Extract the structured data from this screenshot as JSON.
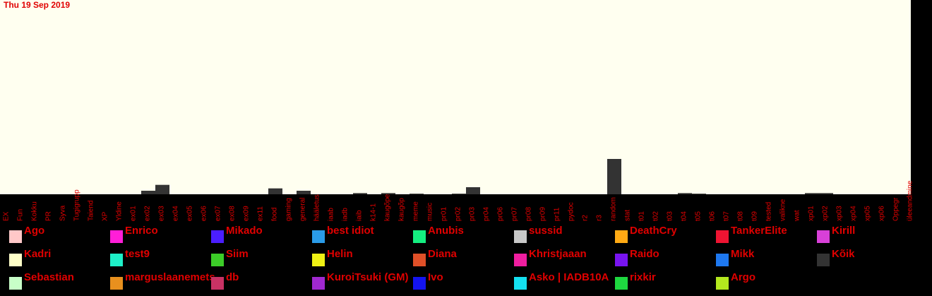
{
  "header": {
    "date": "Thu 19 Sep 2019"
  },
  "colors": {
    "text": "#e00000",
    "background": "#000000",
    "bar": "#333333",
    "plot": "#fffff0"
  },
  "chart_data": {
    "type": "bar",
    "stacked": true,
    "title": "",
    "xlabel": "",
    "ylabel": "",
    "ylim": [
      0,
      50
    ],
    "grid": false,
    "categories": [
      "EX",
      "Fun",
      "Kokku",
      "PR",
      "Syva",
      "Tugigrupp",
      "Taiend",
      "XP",
      "Yldine",
      "ex01",
      "ex02",
      "ex03",
      "ex04",
      "ex05",
      "ex06",
      "ex07",
      "ex08",
      "ex09",
      "ex11",
      "food",
      "gaming",
      "general",
      "hääletus",
      "iaab",
      "iadb",
      "iaib",
      "k14-1",
      "kaugõpe",
      "kaugõp",
      "meme",
      "music",
      "pr01",
      "pr02",
      "pr03",
      "pr04",
      "pr06",
      "pr07",
      "pr08",
      "pr09",
      "pr11",
      "pydoc",
      "r2",
      "r3",
      "random",
      "stat",
      "t01",
      "t02",
      "t03",
      "t04",
      "t05",
      "t06",
      "t07",
      "t08",
      "t09",
      "tested",
      "valikne",
      "wat",
      "xp01",
      "xp02",
      "xp03",
      "xp04",
      "xp05",
      "xp06",
      "Oppegr",
      "üleeandmine"
    ],
    "series": [
      {
        "name": "Kõik",
        "color": "#333333",
        "values": [
          0,
          0,
          0,
          0,
          0,
          0,
          0,
          0,
          0,
          0,
          3,
          8,
          0,
          0,
          0,
          0,
          0,
          0,
          0,
          5,
          0,
          3,
          0,
          0,
          0,
          1,
          0,
          1,
          0,
          0.5,
          0,
          0,
          0.5,
          6,
          0,
          0,
          0,
          0,
          0,
          0,
          0,
          0,
          0,
          30,
          0,
          0,
          0,
          0,
          1,
          0.5,
          0,
          0,
          0,
          0,
          0,
          0,
          0,
          1,
          1,
          0,
          0,
          0,
          0,
          0,
          0
        ]
      }
    ],
    "legend": [
      {
        "name": "Ago",
        "color": "#ffc8c8"
      },
      {
        "name": "Enrico",
        "color": "#ff1ed8"
      },
      {
        "name": "Mikado",
        "color": "#4b1eff"
      },
      {
        "name": "best idiot",
        "color": "#2a9be8"
      },
      {
        "name": "Anubis",
        "color": "#14ee80"
      },
      {
        "name": "sussid",
        "color": "#c8c8c8"
      },
      {
        "name": "DeathCry",
        "color": "#ffaa14"
      },
      {
        "name": "TankerElite",
        "color": "#ee1432"
      },
      {
        "name": "Kirill",
        "color": "#d840d8"
      },
      {
        "name": "Kadri",
        "color": "#ffffc8"
      },
      {
        "name": "test9",
        "color": "#1ef0c8"
      },
      {
        "name": "Siim",
        "color": "#3ccc28"
      },
      {
        "name": "Helin",
        "color": "#eef014"
      },
      {
        "name": "Diana",
        "color": "#e05028"
      },
      {
        "name": "Khristjaaan",
        "color": "#f01ea0"
      },
      {
        "name": "Raido",
        "color": "#7814f0"
      },
      {
        "name": "Mikk",
        "color": "#1e78f0"
      },
      {
        "name": "Kõik",
        "color": "#333333"
      },
      {
        "name": "Sebastian",
        "color": "#c8ffc8"
      },
      {
        "name": "marguslaanemets",
        "color": "#e8901e"
      },
      {
        "name": "db",
        "color": "#c83264"
      },
      {
        "name": "KuroiTsuki (GM)",
        "color": "#a028d0"
      },
      {
        "name": "Ivo",
        "color": "#1414f0"
      },
      {
        "name": "Asko | IADB10A",
        "color": "#14e0f0"
      },
      {
        "name": "rixkir",
        "color": "#1ed840"
      },
      {
        "name": "Argo",
        "color": "#b4e81e"
      }
    ]
  }
}
